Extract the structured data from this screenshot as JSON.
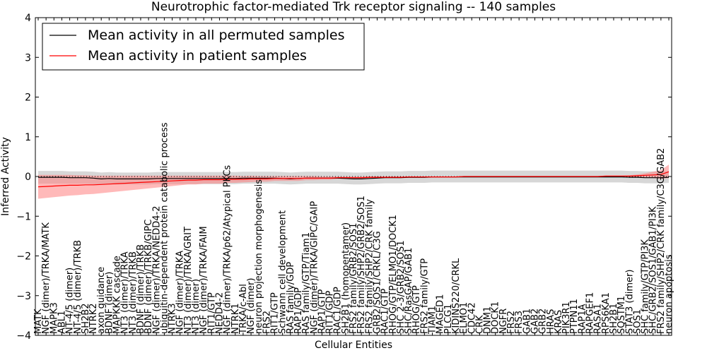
{
  "chart_data": {
    "type": "line",
    "title": "Neurotrophic factor-mediated Trk receptor signaling -- 140 samples",
    "xlabel": "Cellular Entities",
    "ylabel": "Inferred Activity",
    "ylim": [
      -4,
      4
    ],
    "yticks": [
      -4,
      -3,
      -2,
      -1,
      0,
      1,
      2,
      3,
      4
    ],
    "legend_position": "top-left",
    "colors": {
      "permuted": "#000000",
      "patient": "#ff0000",
      "permuted_band": "#bdbdbd",
      "patient_band": "#ff8080"
    },
    "categories": [
      "MATK",
      "NGF (dimer)/TRKA/MATK",
      "MAPK3",
      "ABL1",
      "NT-4/5 (dimer)",
      "NT-4/5 (dimer)/TRKB",
      "SH2B2",
      "NTRK2",
      "axon guidance",
      "BDNF (dimer)",
      "MAPKKK cascade",
      "NT3 (dimer)/TRKA",
      "NT3 (dimer)/TRKB",
      "BDNF (dimer)/TRKB",
      "BDNF (dimer)/TRKB/GIPC",
      "NGF (dimer)/TRKA/NEDD4-2",
      "ubiquitin-dependent protein catabolic process",
      "NTRK3",
      "NGF (dimer)/TRKA",
      "NT3 (dimer)/TRKA/GRIT",
      "NT3 (dimer)",
      "NGF (dimer)/TRKA/FAIM",
      "RIT1/GTP",
      "NEDD4-2",
      "NGF (dimer)/TRKA/p62/Atypical PKCs",
      "NTRK1",
      "TRKA/c-Abl",
      "NGF (dimer)",
      "neuron projection morphogenesis",
      "FRS2",
      "RIT1/GTP",
      "Schwann cell development",
      "RAS family/GDP",
      "RAP1/GDP",
      "RAS family/GTP/Tiam1",
      "NGF (dimer)/TRKA/GIPC/GAIP",
      "RAP1/GTP",
      "RIT1/GDP",
      "RAC1/GDP",
      "SH2B1 (homopentamer)",
      "FRS2 family/GRB2/SOS1",
      "FRS2 family/SHP2/GRB2/SOS1",
      "FRS2 family/SHP2/CRK family",
      "GRB2/SOS1/CRKL/C3G",
      "RAC1/GTP",
      "RHOG/GTP/ELMO1/DOCK1",
      "SHC 2-3/GRB2/SOS1",
      "SHC/RasGAP/GAB1",
      "RHOG/GTP",
      "FRS2 family/GTP",
      "TIAM1",
      "MAGED1",
      "PLCG1",
      "KIDINS220/CRKL",
      "ELMO1",
      "CDC42",
      "CRK",
      "DNM1",
      "DOCK1",
      "NGFR",
      "FRS2",
      "FRS3",
      "GAB1",
      "GAB2",
      "GRB2",
      "HRAS",
      "KRAS",
      "PIK3R1",
      "PTPN11",
      "RAP1A",
      "RAPGEF1",
      "RASA1",
      "RPS6KA1",
      "SH2B1",
      "SQSTM1",
      "STAT3 (dimer)",
      "SOS1",
      "SHC family/GTP/PI3K",
      "SHC/GRB2/SOS1/GAB1/PI3K",
      "FRS2 family/SHP2/CRK family/C3G/GAB2",
      "neuron apoptosis"
    ],
    "series": [
      {
        "name": "Mean activity in all permuted samples",
        "values": [
          -0.02,
          -0.02,
          -0.02,
          -0.02,
          -0.03,
          -0.03,
          -0.03,
          -0.04,
          -0.06,
          -0.05,
          -0.06,
          -0.06,
          -0.06,
          -0.06,
          -0.06,
          -0.05,
          -0.05,
          -0.05,
          -0.05,
          -0.05,
          -0.05,
          -0.05,
          -0.05,
          -0.05,
          -0.05,
          -0.05,
          -0.04,
          -0.04,
          -0.04,
          -0.04,
          -0.04,
          -0.05,
          -0.06,
          -0.05,
          -0.04,
          -0.04,
          -0.04,
          -0.04,
          -0.04,
          -0.05,
          -0.06,
          -0.06,
          -0.05,
          -0.04,
          -0.03,
          -0.03,
          -0.03,
          -0.02,
          -0.02,
          -0.02,
          -0.01,
          -0.01,
          -0.01,
          -0.01,
          -0.01,
          -0.01,
          -0.01,
          -0.01,
          -0.01,
          -0.01,
          -0.01,
          -0.01,
          -0.01,
          -0.01,
          -0.01,
          -0.01,
          -0.01,
          -0.01,
          -0.01,
          -0.01,
          -0.01,
          -0.01,
          -0.01,
          -0.01,
          -0.01,
          -0.02,
          -0.02,
          -0.03,
          -0.03,
          -0.03,
          -0.02
        ],
        "lower": [
          -0.18,
          -0.18,
          -0.18,
          -0.18,
          -0.18,
          -0.18,
          -0.18,
          -0.19,
          -0.2,
          -0.2,
          -0.2,
          -0.2,
          -0.2,
          -0.2,
          -0.2,
          -0.19,
          -0.19,
          -0.19,
          -0.19,
          -0.19,
          -0.19,
          -0.19,
          -0.19,
          -0.19,
          -0.19,
          -0.19,
          -0.18,
          -0.18,
          -0.18,
          -0.18,
          -0.18,
          -0.19,
          -0.2,
          -0.19,
          -0.18,
          -0.18,
          -0.18,
          -0.18,
          -0.18,
          -0.19,
          -0.2,
          -0.2,
          -0.19,
          -0.18,
          -0.17,
          -0.17,
          -0.17,
          -0.16,
          -0.16,
          -0.16,
          -0.15,
          -0.15,
          -0.15,
          -0.15,
          -0.15,
          -0.15,
          -0.15,
          -0.15,
          -0.15,
          -0.15,
          -0.15,
          -0.15,
          -0.15,
          -0.15,
          -0.15,
          -0.15,
          -0.15,
          -0.15,
          -0.15,
          -0.15,
          -0.15,
          -0.15,
          -0.15,
          -0.15,
          -0.15,
          -0.16,
          -0.16,
          -0.17,
          -0.17,
          -0.17,
          -0.16
        ],
        "upper": [
          0.14,
          0.14,
          0.14,
          0.14,
          0.13,
          0.13,
          0.13,
          0.12,
          0.1,
          0.11,
          0.1,
          0.1,
          0.1,
          0.1,
          0.1,
          0.11,
          0.11,
          0.11,
          0.11,
          0.11,
          0.11,
          0.11,
          0.11,
          0.11,
          0.11,
          0.11,
          0.12,
          0.12,
          0.12,
          0.12,
          0.12,
          0.11,
          0.1,
          0.11,
          0.12,
          0.12,
          0.12,
          0.12,
          0.12,
          0.11,
          0.1,
          0.1,
          0.11,
          0.12,
          0.13,
          0.13,
          0.13,
          0.14,
          0.14,
          0.14,
          0.15,
          0.15,
          0.15,
          0.15,
          0.15,
          0.15,
          0.15,
          0.15,
          0.15,
          0.15,
          0.15,
          0.15,
          0.15,
          0.15,
          0.15,
          0.15,
          0.15,
          0.15,
          0.15,
          0.15,
          0.15,
          0.15,
          0.15,
          0.15,
          0.15,
          0.14,
          0.14,
          0.13,
          0.13,
          0.13,
          0.14
        ]
      },
      {
        "name": "Mean activity in patient samples",
        "values": [
          -0.26,
          -0.25,
          -0.24,
          -0.23,
          -0.22,
          -0.22,
          -0.21,
          -0.21,
          -0.2,
          -0.19,
          -0.18,
          -0.17,
          -0.16,
          -0.15,
          -0.14,
          -0.13,
          -0.12,
          -0.11,
          -0.1,
          -0.09,
          -0.09,
          -0.08,
          -0.08,
          -0.08,
          -0.07,
          -0.07,
          -0.07,
          -0.06,
          -0.06,
          -0.06,
          -0.05,
          -0.05,
          -0.05,
          -0.05,
          -0.04,
          -0.04,
          -0.04,
          -0.04,
          -0.03,
          -0.03,
          -0.03,
          -0.03,
          -0.02,
          -0.02,
          -0.02,
          -0.02,
          -0.02,
          -0.01,
          -0.01,
          -0.01,
          -0.01,
          -0.01,
          -0.01,
          -0.01,
          0.0,
          0.0,
          0.0,
          0.0,
          0.0,
          0.0,
          0.0,
          0.0,
          0.0,
          0.0,
          0.0,
          0.0,
          0.0,
          0.0,
          0.0,
          0.0,
          0.0,
          0.0,
          0.01,
          0.01,
          0.01,
          0.01,
          0.02,
          0.03,
          0.04,
          0.05,
          0.12
        ],
        "lower": [
          -0.56,
          -0.54,
          -0.52,
          -0.5,
          -0.48,
          -0.47,
          -0.45,
          -0.44,
          -0.42,
          -0.4,
          -0.38,
          -0.36,
          -0.34,
          -0.32,
          -0.3,
          -0.28,
          -0.26,
          -0.24,
          -0.22,
          -0.2,
          -0.2,
          -0.18,
          -0.18,
          -0.18,
          -0.16,
          -0.16,
          -0.15,
          -0.14,
          -0.13,
          -0.13,
          -0.11,
          -0.11,
          -0.11,
          -0.11,
          -0.09,
          -0.09,
          -0.08,
          -0.08,
          -0.06,
          -0.06,
          -0.06,
          -0.06,
          -0.04,
          -0.04,
          -0.04,
          -0.04,
          -0.04,
          -0.02,
          -0.02,
          -0.02,
          -0.02,
          -0.02,
          -0.02,
          -0.02,
          -0.01,
          -0.01,
          -0.01,
          -0.01,
          -0.01,
          -0.01,
          -0.01,
          -0.01,
          -0.01,
          -0.01,
          -0.01,
          -0.01,
          -0.01,
          -0.01,
          -0.01,
          -0.01,
          -0.01,
          -0.01,
          0.0,
          0.0,
          0.0,
          -0.01,
          -0.01,
          -0.02,
          -0.04,
          -0.06,
          -0.04
        ],
        "upper": [
          0.04,
          0.04,
          0.04,
          0.04,
          0.04,
          0.03,
          0.03,
          0.02,
          0.02,
          0.02,
          0.02,
          0.02,
          0.02,
          0.02,
          0.02,
          0.02,
          0.02,
          0.02,
          0.02,
          0.02,
          0.02,
          0.02,
          0.02,
          0.02,
          0.02,
          0.02,
          0.01,
          0.02,
          0.01,
          0.01,
          0.01,
          0.01,
          0.01,
          0.01,
          0.01,
          0.01,
          0.0,
          0.0,
          0.0,
          0.0,
          0.0,
          0.0,
          0.0,
          0.0,
          0.0,
          0.0,
          0.0,
          0.0,
          0.0,
          0.0,
          0.0,
          0.0,
          0.0,
          0.0,
          0.01,
          0.01,
          0.01,
          0.01,
          0.01,
          0.01,
          0.01,
          0.01,
          0.01,
          0.01,
          0.01,
          0.01,
          0.01,
          0.01,
          0.01,
          0.01,
          0.01,
          0.01,
          0.02,
          0.02,
          0.02,
          0.03,
          0.05,
          0.08,
          0.12,
          0.16,
          0.3
        ]
      }
    ]
  }
}
